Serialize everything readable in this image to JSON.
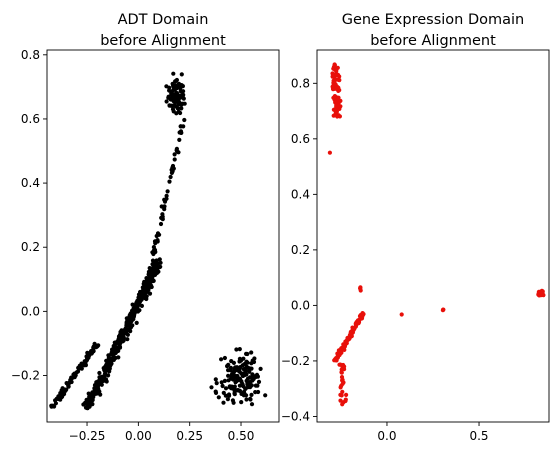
{
  "chart_data": [
    {
      "type": "scatter",
      "title_lines": [
        "ADT Domain",
        "before Alignment"
      ],
      "xlabel": "",
      "ylabel": "",
      "xlim": [
        -0.445,
        0.685
      ],
      "ylim": [
        -0.345,
        0.815
      ],
      "xticks": [
        -0.25,
        0.0,
        0.25,
        0.5
      ],
      "xtick_labels": [
        "−0.25",
        "0.00",
        "0.25",
        "0.50"
      ],
      "yticks": [
        -0.2,
        0.0,
        0.2,
        0.4,
        0.6,
        0.8
      ],
      "ytick_labels": [
        "−0.2",
        "0.0",
        "0.2",
        "0.4",
        "0.6",
        "0.8"
      ],
      "grid": false,
      "color": "#000000",
      "clusters": [
        {
          "x": [
            -0.25,
            0.1
          ],
          "y": [
            -0.3,
            0.15
          ],
          "n": 420,
          "shape": "diagonal"
        },
        {
          "x": [
            -0.42,
            -0.2
          ],
          "y": [
            -0.3,
            -0.1
          ],
          "n": 90,
          "shape": "diagonal"
        },
        {
          "x": [
            0.05,
            0.22
          ],
          "y": [
            0.1,
            0.6
          ],
          "n": 60,
          "shape": "diagonal"
        },
        {
          "x": [
            0.12,
            0.25
          ],
          "y": [
            0.58,
            0.76
          ],
          "n": 90,
          "shape": "blob"
        },
        {
          "x": [
            0.32,
            0.68
          ],
          "y": [
            -0.33,
            -0.08
          ],
          "n": 160,
          "shape": "blob"
        }
      ]
    },
    {
      "type": "scatter",
      "title_lines": [
        "Gene Expression Domain",
        "before Alignment"
      ],
      "xlabel": "",
      "ylabel": "",
      "xlim": [
        -0.38,
        0.88
      ],
      "ylim": [
        -0.42,
        0.92
      ],
      "xticks": [
        0.0,
        0.5
      ],
      "xtick_labels": [
        "0.0",
        "0.5"
      ],
      "yticks": [
        -0.4,
        -0.2,
        0.0,
        0.2,
        0.4,
        0.6,
        0.8
      ],
      "ytick_labels": [
        "−0.4",
        "−0.2",
        "0.0",
        "0.2",
        "0.4",
        "0.6",
        "0.8"
      ],
      "grid": false,
      "color": "#e8100a",
      "clusters": [
        {
          "x": [
            -0.3,
            -0.25
          ],
          "y": [
            0.68,
            0.87
          ],
          "n": 70,
          "shape": "column"
        },
        {
          "x": [
            -0.28,
            -0.13
          ],
          "y": [
            -0.2,
            -0.03
          ],
          "n": 120,
          "shape": "diagonal"
        },
        {
          "x": [
            -0.26,
            -0.22
          ],
          "y": [
            -0.36,
            -0.21
          ],
          "n": 25,
          "shape": "column"
        },
        {
          "x": [
            0.81,
            0.86
          ],
          "y": [
            0.03,
            0.06
          ],
          "n": 25,
          "shape": "blob"
        },
        {
          "x": [
            -0.15,
            -0.14
          ],
          "y": [
            0.05,
            0.07
          ],
          "n": 4,
          "shape": "blob"
        },
        {
          "x": [
            0.3,
            0.31
          ],
          "y": [
            -0.02,
            -0.01
          ],
          "n": 3,
          "shape": "blob"
        },
        {
          "x": [
            0.08,
            0.08
          ],
          "y": [
            -0.04,
            -0.03
          ],
          "n": 1,
          "shape": "blob"
        },
        {
          "x": [
            -0.31,
            -0.31
          ],
          "y": [
            0.55,
            0.55
          ],
          "n": 1,
          "shape": "blob"
        }
      ]
    }
  ]
}
